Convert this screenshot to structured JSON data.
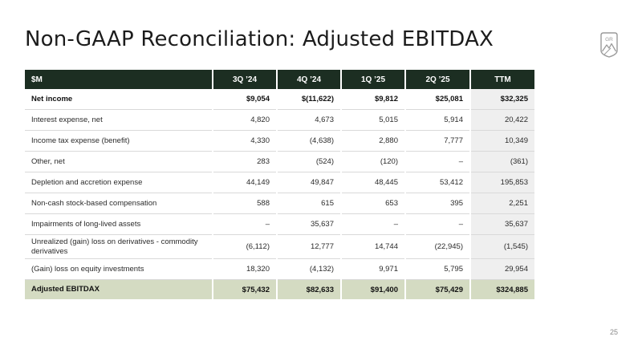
{
  "slide": {
    "title": "Non-GAAP Reconciliation: Adjusted EBITDAX",
    "logo_text": "GR",
    "page_number": "25"
  },
  "table": {
    "headers": [
      "$M",
      "3Q ’24",
      "4Q ’24",
      "1Q ’25",
      "2Q ’25",
      "TTM"
    ],
    "rows": [
      {
        "label": "Net income",
        "values": [
          "$9,054",
          "$(11,622)",
          "$9,812",
          "$25,081",
          "$32,325"
        ]
      },
      {
        "label": "Interest expense, net",
        "values": [
          "4,820",
          "4,673",
          "5,015",
          "5,914",
          "20,422"
        ]
      },
      {
        "label": "Income tax expense (benefit)",
        "values": [
          "4,330",
          "(4,638)",
          "2,880",
          "7,777",
          "10,349"
        ]
      },
      {
        "label": "Other, net",
        "values": [
          "283",
          "(524)",
          "(120)",
          "–",
          "(361)"
        ]
      },
      {
        "label": "Depletion and accretion expense",
        "values": [
          "44,149",
          "49,847",
          "48,445",
          "53,412",
          "195,853"
        ]
      },
      {
        "label": "Non-cash stock-based compensation",
        "values": [
          "588",
          "615",
          "653",
          "395",
          "2,251"
        ]
      },
      {
        "label": "Impairments of long-lived assets",
        "values": [
          "–",
          "35,637",
          "–",
          "–",
          "35,637"
        ]
      },
      {
        "label": "Unrealized (gain) loss on derivatives - commodity derivatives",
        "values": [
          "(6,112)",
          "12,777",
          "14,744",
          "(22,945)",
          "(1,545)"
        ]
      },
      {
        "label": "(Gain) loss on equity investments",
        "values": [
          "18,320",
          "(4,132)",
          "9,971",
          "5,795",
          "29,954"
        ]
      },
      {
        "label": "Adjusted EBITDAX",
        "values": [
          "$75,432",
          "$82,633",
          "$91,400",
          "$75,429",
          "$324,885"
        ]
      }
    ]
  },
  "colors": {
    "header_bg": "#1c2e22",
    "total_bg": "#d4dbc2",
    "ttm_bg": "#efefef"
  }
}
